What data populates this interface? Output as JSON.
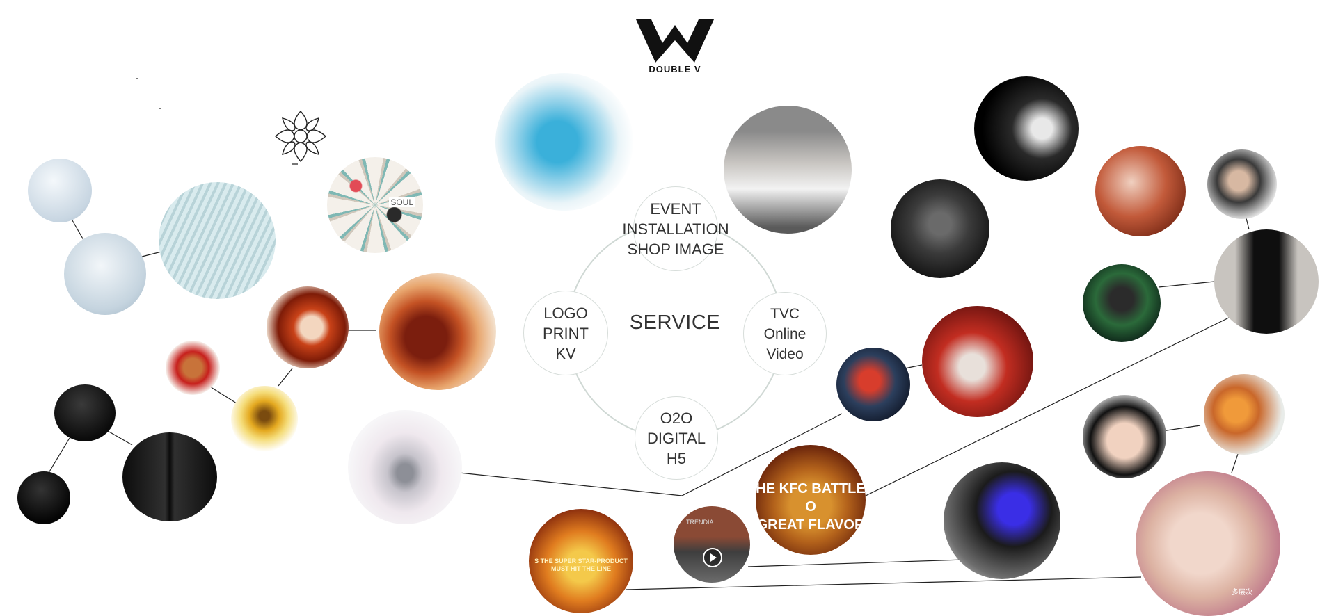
{
  "brand": {
    "name": "DOUBLE V"
  },
  "service": {
    "title": "SERVICE",
    "event": "EVENT\nINSTALLATION\nSHOP IMAGE",
    "logo": "LOGO\nPRINT\nKV",
    "tvc": "TVC\nOnline Video",
    "o2o": "O2O\nDIGITAL\nH5"
  },
  "thumbs": {
    "kfc_battle": "HE KFC BATTLE O\nGREAT FLAVOR",
    "superstar": "S THE SUPER STAR-PRODUCT\nMUST HIT THE LINE",
    "trendi": "TRENDIA",
    "soul": "SOUL",
    "chinese_caption": "多层次"
  },
  "colors": {
    "accent": "#111111",
    "ring": "#d7ddda"
  }
}
